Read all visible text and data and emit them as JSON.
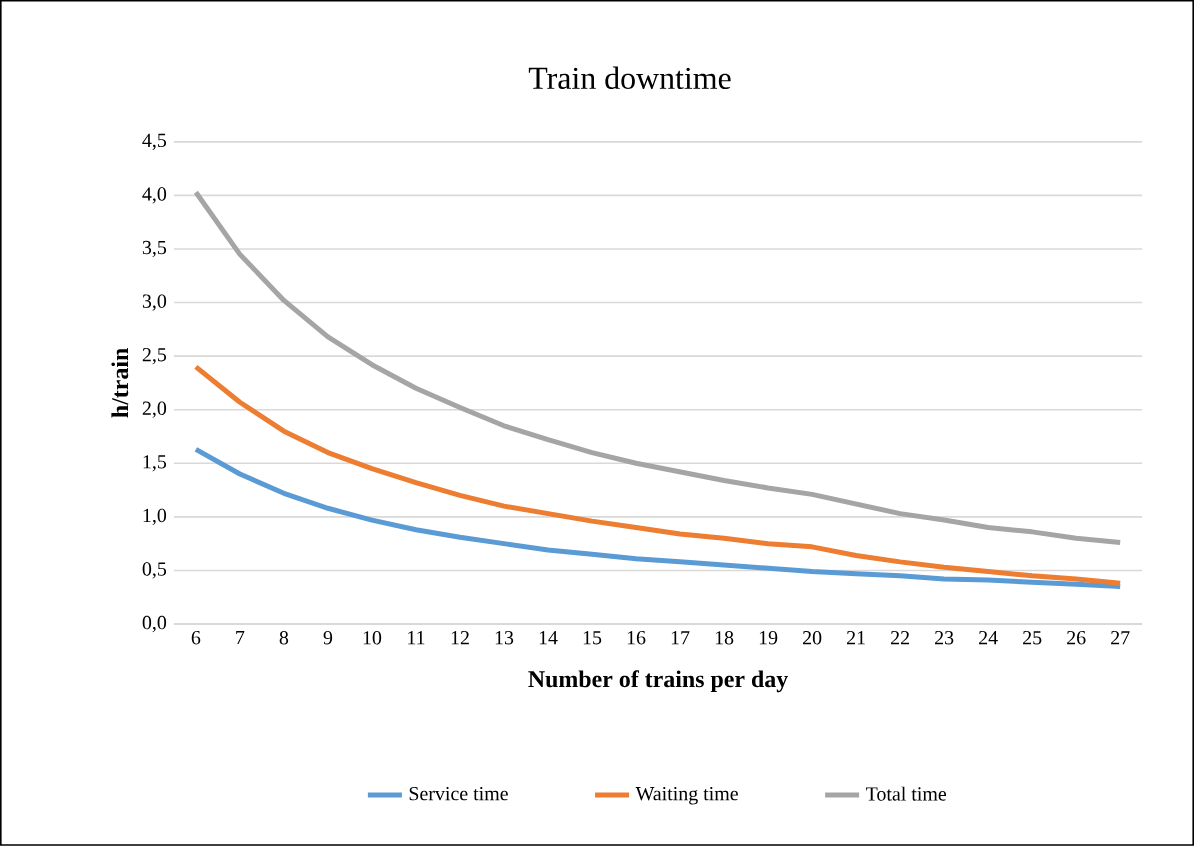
{
  "chart_data": {
    "type": "line",
    "title": "Train downtime",
    "xlabel": "Number of trains per day",
    "ylabel": "h/train",
    "categories": [
      "6",
      "7",
      "8",
      "9",
      "10",
      "11",
      "12",
      "13",
      "14",
      "15",
      "16",
      "17",
      "18",
      "19",
      "20",
      "21",
      "22",
      "23",
      "24",
      "25",
      "26",
      "27"
    ],
    "series": [
      {
        "name": "Service time",
        "color": "#5b9bd5",
        "values": [
          1.63,
          1.4,
          1.22,
          1.08,
          0.97,
          0.88,
          0.81,
          0.75,
          0.69,
          0.65,
          0.61,
          0.58,
          0.55,
          0.52,
          0.49,
          0.47,
          0.45,
          0.42,
          0.41,
          0.39,
          0.37,
          0.35
        ]
      },
      {
        "name": "Waiting time",
        "color": "#ed7d31",
        "values": [
          2.4,
          2.07,
          1.8,
          1.6,
          1.45,
          1.32,
          1.2,
          1.1,
          1.03,
          0.96,
          0.9,
          0.84,
          0.8,
          0.75,
          0.72,
          0.64,
          0.58,
          0.53,
          0.49,
          0.45,
          0.42,
          0.38
        ]
      },
      {
        "name": "Total time",
        "color": "#a5a5a5",
        "values": [
          4.03,
          3.45,
          3.02,
          2.68,
          2.42,
          2.2,
          2.02,
          1.85,
          1.72,
          1.6,
          1.5,
          1.42,
          1.34,
          1.27,
          1.21,
          1.12,
          1.03,
          0.97,
          0.9,
          0.86,
          0.8,
          0.76
        ]
      }
    ],
    "ylim": [
      0,
      4.5
    ],
    "yticks": [
      {
        "value": 0,
        "label": "0,0"
      },
      {
        "value": 0.5,
        "label": "0,5"
      },
      {
        "value": 1,
        "label": "1,0"
      },
      {
        "value": 1.5,
        "label": "1,5"
      },
      {
        "value": 2,
        "label": "2,0"
      },
      {
        "value": 2.5,
        "label": "2,5"
      },
      {
        "value": 3,
        "label": "3,0"
      },
      {
        "value": 3.5,
        "label": "3,5"
      },
      {
        "value": 4,
        "label": "4,0"
      },
      {
        "value": 4.5,
        "label": "4,5"
      }
    ],
    "grid": "y",
    "legend": "bottom",
    "marker": "none",
    "line_style": "solid"
  }
}
